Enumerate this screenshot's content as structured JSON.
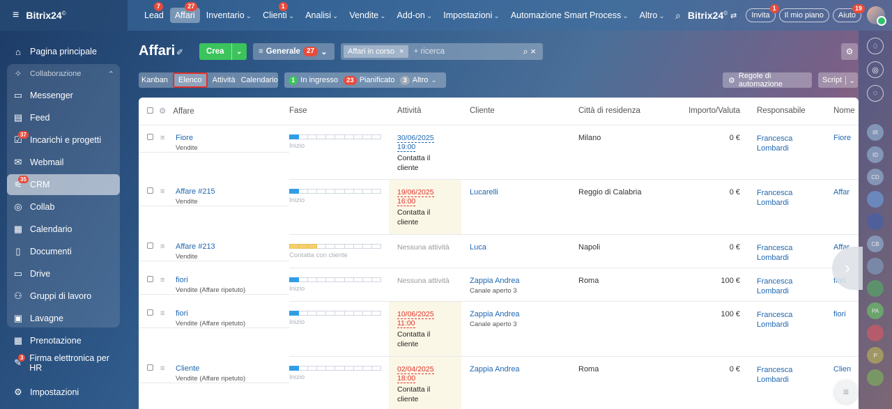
{
  "app": {
    "logo": "Bitrix24",
    "logo_mark": "©"
  },
  "topnav": [
    {
      "label": "Lead",
      "badge": "7",
      "chevron": false,
      "active": false
    },
    {
      "label": "Affari",
      "badge": "27",
      "chevron": false,
      "active": true
    },
    {
      "label": "Inventario",
      "badge": "",
      "chevron": true,
      "active": false
    },
    {
      "label": "Clienti",
      "badge": "1",
      "chevron": true,
      "active": false
    },
    {
      "label": "Analisi",
      "badge": "",
      "chevron": true,
      "active": false
    },
    {
      "label": "Vendite",
      "badge": "",
      "chevron": true,
      "active": false
    },
    {
      "label": "Add-on",
      "badge": "",
      "chevron": true,
      "active": false
    },
    {
      "label": "Impostazioni",
      "badge": "",
      "chevron": true,
      "active": false
    },
    {
      "label": "Automazione Smart Process",
      "badge": "",
      "chevron": true,
      "active": false
    },
    {
      "label": "Altro",
      "badge": "",
      "chevron": true,
      "active": false
    }
  ],
  "topright": {
    "brand": "Bitrix24",
    "invite": "Invita",
    "invite_badge": "1",
    "plan": "Il mio piano",
    "help": "Aiuto",
    "help_badge": "19"
  },
  "sidebar": [
    {
      "label": "Pagina principale",
      "icon": "home-icon",
      "badge": ""
    },
    {
      "label": "Collaborazione",
      "icon": "collab-group-icon",
      "badge": ""
    },
    {
      "label": "Messenger",
      "icon": "chat-icon",
      "badge": ""
    },
    {
      "label": "Feed",
      "icon": "feed-icon",
      "badge": ""
    },
    {
      "label": "Incarichi e progetti",
      "icon": "tasks-icon",
      "badge": "37"
    },
    {
      "label": "Webmail",
      "icon": "mail-icon",
      "badge": ""
    },
    {
      "label": "CRM",
      "icon": "crm-icon",
      "badge": "35"
    },
    {
      "label": "Collab",
      "icon": "collab-icon",
      "badge": ""
    },
    {
      "label": "Calendario",
      "icon": "calendar-icon",
      "badge": ""
    },
    {
      "label": "Documenti",
      "icon": "documents-icon",
      "badge": ""
    },
    {
      "label": "Drive",
      "icon": "drive-icon",
      "badge": ""
    },
    {
      "label": "Gruppi di lavoro",
      "icon": "groups-icon",
      "badge": ""
    },
    {
      "label": "Lavagne",
      "icon": "boards-icon",
      "badge": ""
    },
    {
      "label": "Prenotazione",
      "icon": "booking-icon",
      "badge": ""
    },
    {
      "label": "Firma elettronica per HR",
      "icon": "signature-icon",
      "badge": "3"
    },
    {
      "label": "Impostazioni",
      "icon": "settings-icon",
      "badge": ""
    }
  ],
  "header": {
    "title": "Affari",
    "create": "Crea",
    "pipeline": "Generale",
    "pipeline_count": "27",
    "filter_tag": "Affari in corso",
    "search_placeholder": "+ ricerca"
  },
  "views": [
    "Kanban",
    "Elenco",
    "Attività",
    "Calendario"
  ],
  "counters": [
    {
      "count": "1",
      "label": "In ingresso",
      "color": "#3bc35c"
    },
    {
      "count": "23",
      "label": "Pianificato",
      "color": "#e74b3c"
    },
    {
      "count": "3",
      "label": "Altro",
      "color": "#a0aab4"
    }
  ],
  "toolbar": {
    "automation": "Regole di automazione",
    "script": "Script"
  },
  "columns": [
    "Affare",
    "Fase",
    "Attività",
    "Cliente",
    "Città di residenza",
    "Importo/Valuta",
    "Responsabile",
    "Nome"
  ],
  "rows": [
    {
      "deal": "Fiore",
      "pipeline": "Vendite",
      "stage": "Inizio",
      "stage_fill": 1,
      "stage_color": "blue",
      "act_date": "30/06/2025",
      "act_time": "19:00",
      "act_text": "Contatta il cliente",
      "act_overdue": false,
      "client": "",
      "client_sub": "",
      "city": "Milano",
      "amount": "0 €",
      "resp": "Francesca Lombardi",
      "name": "Fiore"
    },
    {
      "deal": "Affare #215",
      "pipeline": "Vendite",
      "stage": "Inizio",
      "stage_fill": 1,
      "stage_color": "blue",
      "act_date": "19/06/2025",
      "act_time": "16:00",
      "act_text": "Contatta il cliente",
      "act_overdue": true,
      "client": "Lucarelli",
      "client_sub": "",
      "city": "Reggio di Calabria",
      "amount": "0 €",
      "resp": "Francesca Lombardi",
      "name": "Affar"
    },
    {
      "deal": "Affare #213",
      "pipeline": "Vendite",
      "stage": "Contatta con cliente",
      "stage_fill": 3,
      "stage_color": "yellow",
      "act_none": "Nessuna attività",
      "client": "Luca",
      "client_sub": "",
      "city": "Napoli",
      "amount": "0 €",
      "resp": "Francesca Lombardi",
      "name": "Affar"
    },
    {
      "deal": "fiori",
      "pipeline": "Vendite (Affare ripetuto)",
      "stage": "Inizio",
      "stage_fill": 1,
      "stage_color": "blue",
      "act_none": "Nessuna attività",
      "client": "Zappia Andrea",
      "client_sub": "Canale aperto 3",
      "city": "Roma",
      "amount": "100 €",
      "resp": "Francesca Lombardi",
      "name": "fiori"
    },
    {
      "deal": "fiori",
      "pipeline": "Vendite (Affare ripetuto)",
      "stage": "Inizio",
      "stage_fill": 1,
      "stage_color": "blue",
      "act_date": "10/06/2025",
      "act_time": "11:00",
      "act_text": "Contatta il cliente",
      "act_overdue": true,
      "client": "Zappia Andrea",
      "client_sub": "Canale aperto 3",
      "city": "",
      "amount": "100 €",
      "resp": "Francesca Lombardi",
      "name": "fiori"
    },
    {
      "deal": "Cliente",
      "pipeline": "Vendite (Affare ripetuto)",
      "stage": "Inizio",
      "stage_fill": 1,
      "stage_color": "blue",
      "act_date": "02/04/2025",
      "act_time": "18:00",
      "act_text": "Contatta il cliente",
      "act_overdue": true,
      "client": "Zappia Andrea",
      "client_sub": "",
      "city": "Roma",
      "amount": "0 €",
      "resp": "Francesca Lombardi",
      "name": "Clien"
    }
  ],
  "rightrail": [
    "IR",
    "ID",
    "CD",
    "",
    "",
    "CB",
    "",
    "",
    "PA",
    "",
    "P",
    ""
  ]
}
